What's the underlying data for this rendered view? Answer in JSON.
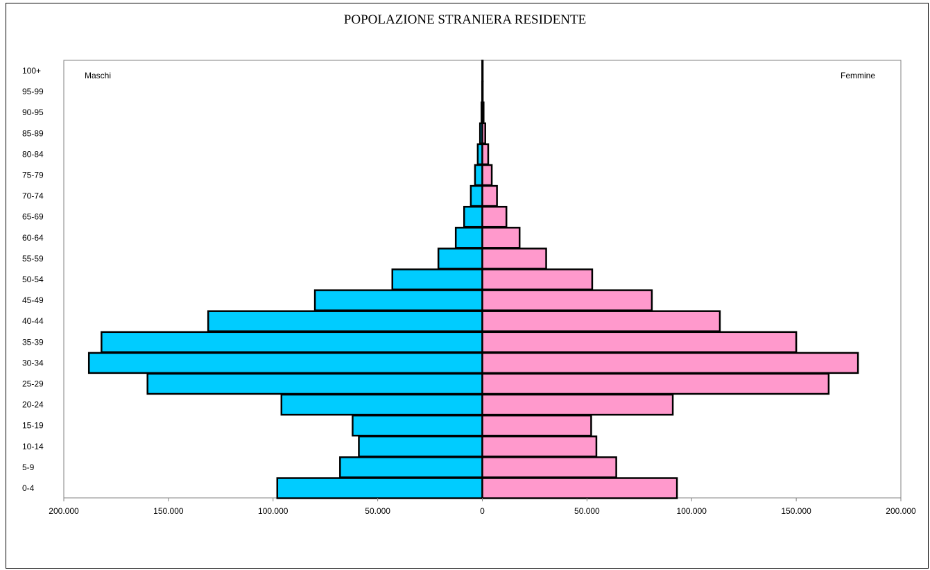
{
  "chart_data": {
    "type": "bar",
    "orientation": "horizontal-population-pyramid",
    "title": "POPOLAZIONE STRANIERA RESIDENTE",
    "left_label": "Maschi",
    "right_label": "Femmine",
    "categories": [
      "0-4",
      "5-9",
      "10-14",
      "15-19",
      "20-24",
      "25-29",
      "30-34",
      "35-39",
      "40-44",
      "45-49",
      "50-54",
      "55-59",
      "60-64",
      "65-69",
      "70-74",
      "75-79",
      "80-84",
      "85-89",
      "90-95",
      "95-99",
      "100+"
    ],
    "series": [
      {
        "name": "Maschi",
        "color": "#00CCFF",
        "values": [
          98000,
          68000,
          59000,
          62000,
          96000,
          160000,
          188000,
          182000,
          131000,
          80000,
          43000,
          21000,
          12700,
          8700,
          5500,
          3500,
          2200,
          1100,
          400,
          100,
          50
        ]
      },
      {
        "name": "Femmine",
        "color": "#FF99CC",
        "values": [
          93000,
          64000,
          54500,
          52000,
          91000,
          165500,
          179500,
          150000,
          113500,
          81000,
          52500,
          30500,
          17800,
          11500,
          7000,
          4500,
          2800,
          1400,
          600,
          200,
          80
        ]
      }
    ],
    "xlim": [
      -200000,
      200000
    ],
    "x_tick_labels": [
      "200.000",
      "150.000",
      "100.000",
      "50.000",
      "0",
      "50.000",
      "100.000",
      "150.000",
      "200.000"
    ],
    "grid": false
  }
}
